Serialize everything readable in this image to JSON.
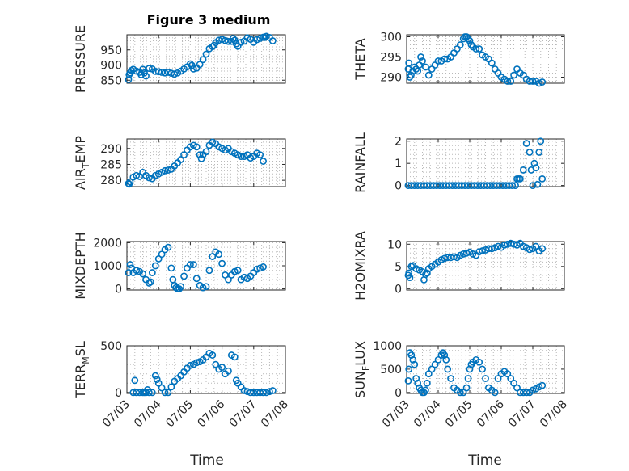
{
  "figure_title": "Figure 3 medium",
  "xlabel": "Time",
  "marker_color": "#0072BD",
  "chart_data": [
    {
      "type": "scatter",
      "ylabel": "PRESSURE",
      "ylim": [
        840,
        1000
      ],
      "yticks": [
        "850",
        "900",
        "950"
      ],
      "ytick_values": [
        850,
        900,
        950
      ],
      "xlim": [
        0,
        5
      ],
      "xticks": [],
      "x": [
        0.05,
        0.07,
        0.1,
        0.14,
        0.2,
        0.3,
        0.4,
        0.45,
        0.5,
        0.55,
        0.6,
        0.7,
        0.8,
        0.9,
        1.0,
        1.1,
        1.2,
        1.3,
        1.4,
        1.5,
        1.6,
        1.7,
        1.8,
        1.9,
        2.0,
        2.05,
        2.1,
        2.2,
        2.3,
        2.4,
        2.5,
        2.6,
        2.7,
        2.75,
        2.8,
        2.9,
        3.0,
        3.1,
        3.2,
        3.3,
        3.35,
        3.4,
        3.45,
        3.5,
        3.6,
        3.7,
        3.8,
        3.9,
        4.0,
        4.1,
        4.2,
        4.3,
        4.35,
        4.4,
        4.5,
        4.6
      ],
      "y": [
        852,
        868,
        874,
        882,
        886,
        880,
        876,
        868,
        886,
        874,
        864,
        889,
        887,
        879,
        878,
        876,
        874,
        876,
        873,
        870,
        874,
        880,
        887,
        894,
        904,
        899,
        887,
        890,
        902,
        918,
        936,
        954,
        961,
        965,
        974,
        982,
        985,
        981,
        978,
        978,
        988,
        982,
        970,
        962,
        975,
        979,
        990,
        985,
        975,
        984,
        988,
        992,
        991,
        995,
        991,
        980
      ]
    },
    {
      "type": "scatter",
      "ylabel": "THETA",
      "ylim": [
        288.5,
        300.5
      ],
      "yticks": [
        "290",
        "295",
        "300"
      ],
      "ytick_values": [
        290,
        295,
        300
      ],
      "xlim": [
        0,
        5
      ],
      "xticks": [],
      "x": [
        0.05,
        0.07,
        0.1,
        0.14,
        0.2,
        0.25,
        0.3,
        0.35,
        0.4,
        0.45,
        0.5,
        0.6,
        0.7,
        0.8,
        0.9,
        1.0,
        1.1,
        1.2,
        1.3,
        1.4,
        1.5,
        1.6,
        1.7,
        1.8,
        1.85,
        1.9,
        1.95,
        2.0,
        2.05,
        2.1,
        2.2,
        2.3,
        2.4,
        2.5,
        2.6,
        2.7,
        2.8,
        2.9,
        3.0,
        3.1,
        3.2,
        3.3,
        3.4,
        3.5,
        3.6,
        3.7,
        3.8,
        3.9,
        4.0,
        4.1,
        4.2,
        4.3
      ],
      "y": [
        292,
        293.5,
        290,
        290.5,
        291.5,
        292.5,
        292,
        291.5,
        293,
        295,
        294,
        292.5,
        290.5,
        292,
        293,
        294,
        294,
        294.5,
        294.5,
        295,
        296,
        297,
        298,
        299.5,
        300,
        300,
        299.5,
        299,
        298,
        297.5,
        297,
        297,
        295.5,
        295,
        294.5,
        293.5,
        292,
        291,
        290,
        289.5,
        289,
        289,
        290.5,
        292,
        291,
        290.5,
        289.5,
        289,
        289,
        289,
        288.5,
        288.8
      ]
    },
    {
      "type": "scatter",
      "ylabel_main": "AIR",
      "ylabel_sub": "T",
      "ylabel_rest": "EMP",
      "ylim": [
        278,
        293
      ],
      "yticks": [
        "280",
        "285",
        "290"
      ],
      "ytick_values": [
        280,
        285,
        290
      ],
      "xlim": [
        0,
        5
      ],
      "xticks": [],
      "x": [
        0.05,
        0.07,
        0.1,
        0.2,
        0.3,
        0.4,
        0.5,
        0.6,
        0.7,
        0.8,
        0.9,
        1.0,
        1.1,
        1.2,
        1.3,
        1.4,
        1.5,
        1.6,
        1.7,
        1.8,
        1.9,
        2.0,
        2.1,
        2.2,
        2.3,
        2.35,
        2.4,
        2.5,
        2.6,
        2.7,
        2.8,
        2.9,
        3.0,
        3.1,
        3.2,
        3.3,
        3.4,
        3.5,
        3.6,
        3.7,
        3.8,
        3.9,
        4.0,
        4.1,
        4.2,
        4.3
      ],
      "y": [
        279,
        278.8,
        279.5,
        281,
        281.5,
        281.2,
        282.5,
        281.5,
        280.8,
        280.5,
        281.5,
        282,
        282.5,
        283,
        283.2,
        283.5,
        284.5,
        285.5,
        286.5,
        288,
        289.5,
        290.5,
        291,
        290.5,
        288,
        286.8,
        288,
        289,
        291,
        292,
        291.5,
        290.5,
        290,
        289.5,
        290,
        289,
        288.5,
        288,
        287.5,
        287.5,
        288,
        287,
        287.5,
        288.5,
        288,
        286
      ]
    },
    {
      "type": "scatter",
      "ylabel": "RAINFALL",
      "ylim": [
        -0.05,
        2.1
      ],
      "yticks": [
        "0",
        "1",
        "2"
      ],
      "ytick_values": [
        0,
        1,
        2
      ],
      "xlim": [
        0,
        5
      ],
      "xticks": [],
      "x": [
        0.05,
        0.15,
        0.25,
        0.35,
        0.45,
        0.55,
        0.65,
        0.75,
        0.85,
        0.95,
        1.05,
        1.15,
        1.25,
        1.35,
        1.45,
        1.55,
        1.65,
        1.75,
        1.85,
        1.95,
        2.05,
        2.15,
        2.25,
        2.35,
        2.45,
        2.55,
        2.65,
        2.75,
        2.85,
        2.95,
        3.05,
        3.15,
        3.25,
        3.35,
        3.45,
        3.5,
        3.55,
        3.6,
        3.7,
        3.8,
        3.9,
        3.95,
        4.0,
        4.05,
        4.1,
        4.15,
        4.2,
        4.25,
        4.3
      ],
      "y": [
        0,
        0,
        0,
        0,
        0,
        0,
        0,
        0,
        0,
        0,
        0,
        0,
        0,
        0,
        0,
        0,
        0,
        0,
        0,
        0,
        0,
        0,
        0,
        0,
        0,
        0,
        0,
        0,
        0,
        0,
        0,
        0,
        0,
        0,
        0,
        0.3,
        0.3,
        0.3,
        0.7,
        1.9,
        1.5,
        0.7,
        0,
        1,
        0.8,
        0.05,
        1.5,
        2,
        0.3
      ]
    },
    {
      "type": "scatter",
      "ylabel": "MIXDEPTH",
      "ylim": [
        -50,
        2050
      ],
      "yticks": [
        "0",
        "1000",
        "2000"
      ],
      "ytick_values": [
        0,
        1000,
        2000
      ],
      "xlim": [
        0,
        5
      ],
      "xticks": [],
      "x": [
        0.05,
        0.1,
        0.15,
        0.2,
        0.3,
        0.4,
        0.5,
        0.6,
        0.7,
        0.75,
        0.8,
        0.9,
        1.0,
        1.1,
        1.2,
        1.3,
        1.4,
        1.45,
        1.5,
        1.55,
        1.6,
        1.65,
        1.7,
        1.8,
        1.9,
        2.0,
        2.1,
        2.2,
        2.3,
        2.4,
        2.5,
        2.6,
        2.7,
        2.8,
        2.9,
        3.0,
        3.1,
        3.2,
        3.3,
        3.4,
        3.5,
        3.6,
        3.7,
        3.8,
        3.9,
        4.0,
        4.1,
        4.2,
        4.3
      ],
      "y": [
        700,
        1050,
        900,
        700,
        800,
        750,
        650,
        400,
        250,
        300,
        700,
        1000,
        1300,
        1500,
        1700,
        1800,
        900,
        400,
        150,
        50,
        0,
        0,
        100,
        550,
        900,
        1050,
        1050,
        450,
        150,
        50,
        100,
        800,
        1400,
        1600,
        1500,
        1100,
        600,
        400,
        600,
        750,
        800,
        400,
        500,
        450,
        550,
        700,
        850,
        900,
        950
      ]
    },
    {
      "type": "scatter",
      "ylabel": "H2OMIXRA",
      "ylim": [
        -0.3,
        10.6
      ],
      "yticks": [
        "0",
        "5",
        "10"
      ],
      "ytick_values": [
        0,
        5,
        10
      ],
      "xlim": [
        0,
        5
      ],
      "xticks": [],
      "x": [
        0.05,
        0.07,
        0.1,
        0.15,
        0.2,
        0.3,
        0.4,
        0.5,
        0.55,
        0.6,
        0.65,
        0.7,
        0.8,
        0.9,
        1.0,
        1.1,
        1.2,
        1.3,
        1.4,
        1.5,
        1.6,
        1.7,
        1.8,
        1.9,
        2.0,
        2.1,
        2.2,
        2.3,
        2.4,
        2.5,
        2.6,
        2.7,
        2.8,
        2.9,
        3.0,
        3.1,
        3.2,
        3.3,
        3.4,
        3.5,
        3.6,
        3.7,
        3.8,
        3.9,
        4.0,
        4.1,
        4.2,
        4.3
      ],
      "y": [
        3,
        3.5,
        2.5,
        5,
        5.2,
        4.5,
        4.2,
        3.8,
        2,
        3.2,
        3.5,
        4.5,
        5,
        5.5,
        6,
        6.5,
        6.8,
        7,
        7,
        7.2,
        7,
        7.5,
        7.8,
        8,
        8.2,
        7.8,
        7.5,
        8.3,
        8.5,
        8.7,
        9,
        9,
        9.2,
        9.5,
        9.3,
        9.8,
        10,
        10.2,
        10,
        9.8,
        10.2,
        9.5,
        9.2,
        8.8,
        9,
        9.5,
        8.5,
        9
      ]
    },
    {
      "type": "scatter",
      "ylabel_main": "TERR",
      "ylabel_sub": "M",
      "ylabel_rest": "SL",
      "ylim": [
        -10,
        500
      ],
      "yticks": [
        "0",
        "500"
      ],
      "ytick_values": [
        0,
        500
      ],
      "xlim": [
        0,
        5
      ],
      "xticks": [
        "07/03",
        "07/04",
        "07/05",
        "07/06",
        "07/07",
        "07/08"
      ],
      "xtick_values": [
        0,
        1,
        2,
        3,
        4,
        5
      ],
      "x": [
        0.2,
        0.25,
        0.3,
        0.4,
        0.5,
        0.55,
        0.6,
        0.65,
        0.7,
        0.8,
        0.9,
        0.95,
        1.0,
        1.1,
        1.2,
        1.3,
        1.4,
        1.5,
        1.6,
        1.7,
        1.8,
        1.9,
        2.0,
        2.1,
        2.2,
        2.3,
        2.4,
        2.5,
        2.6,
        2.7,
        2.8,
        2.9,
        3.0,
        3.1,
        3.2,
        3.3,
        3.4,
        3.45,
        3.5,
        3.6,
        3.7,
        3.8,
        3.9,
        4.0,
        4.1,
        4.2,
        4.3,
        4.4,
        4.5,
        4.6
      ],
      "y": [
        0,
        130,
        0,
        0,
        0,
        0,
        0,
        30,
        0,
        0,
        180,
        140,
        100,
        50,
        0,
        0,
        60,
        120,
        150,
        180,
        220,
        260,
        290,
        300,
        320,
        330,
        350,
        380,
        420,
        400,
        300,
        250,
        270,
        200,
        230,
        400,
        380,
        130,
        100,
        60,
        20,
        10,
        0,
        0,
        0,
        0,
        0,
        0,
        10,
        20
      ]
    },
    {
      "type": "scatter",
      "ylabel_main": "SUN",
      "ylabel_sub": "F",
      "ylabel_rest": "LUX",
      "ylim": [
        -20,
        1000
      ],
      "yticks": [
        "0",
        "500",
        "1000"
      ],
      "ytick_values": [
        0,
        500,
        1000
      ],
      "xlim": [
        0,
        5
      ],
      "xticks": [
        "07/03",
        "07/04",
        "07/05",
        "07/06",
        "07/07",
        "07/08"
      ],
      "xtick_values": [
        0,
        1,
        2,
        3,
        4,
        5
      ],
      "x": [
        0.05,
        0.07,
        0.1,
        0.15,
        0.2,
        0.25,
        0.3,
        0.35,
        0.4,
        0.45,
        0.5,
        0.55,
        0.6,
        0.65,
        0.7,
        0.8,
        0.9,
        1.0,
        1.1,
        1.15,
        1.2,
        1.25,
        1.3,
        1.4,
        1.5,
        1.6,
        1.7,
        1.8,
        1.9,
        1.95,
        2.0,
        2.05,
        2.1,
        2.2,
        2.3,
        2.4,
        2.5,
        2.6,
        2.7,
        2.8,
        2.9,
        3.0,
        3.1,
        3.2,
        3.3,
        3.4,
        3.5,
        3.6,
        3.7,
        3.8,
        3.9,
        4.0,
        4.1,
        4.2,
        4.3
      ],
      "y": [
        250,
        500,
        850,
        800,
        700,
        600,
        300,
        200,
        100,
        50,
        0,
        0,
        50,
        200,
        400,
        500,
        600,
        700,
        800,
        850,
        800,
        700,
        500,
        300,
        100,
        50,
        0,
        0,
        100,
        300,
        500,
        600,
        650,
        700,
        650,
        500,
        300,
        100,
        50,
        0,
        300,
        400,
        450,
        400,
        300,
        200,
        100,
        0,
        0,
        0,
        0,
        50,
        80,
        120,
        150
      ]
    }
  ]
}
